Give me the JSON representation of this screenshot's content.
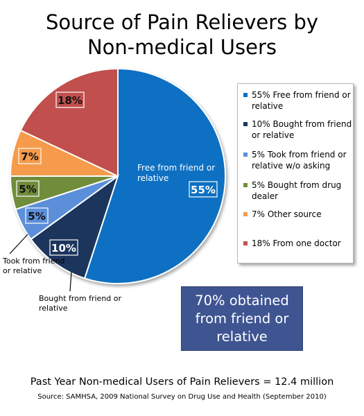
{
  "title_line1": "Source of Pain Relievers by",
  "title_line2": "Non-medical Users",
  "chart_data": {
    "type": "pie",
    "title": "Source of Pain Relievers by Non-medical Users",
    "slices": [
      {
        "label": "Free from friend or relative",
        "value": 55,
        "value_label": "55%",
        "color": "#0a6fc2",
        "inner_text": "Free from friend or relative"
      },
      {
        "label": "Bought from friend or relative",
        "value": 10,
        "value_label": "10%",
        "color": "#1b365d"
      },
      {
        "label": "Took from friend or relative w/o asking",
        "value": 5,
        "value_label": "5%",
        "color": "#5b8fd9"
      },
      {
        "label": "Bought from drug dealer",
        "value": 5,
        "value_label": "5%",
        "color": "#6f8d3a"
      },
      {
        "label": "Other source",
        "value": 7,
        "value_label": "7%",
        "color": "#f69b4b"
      },
      {
        "label": "From one doctor",
        "value": 18,
        "value_label": "18%",
        "color": "#c0504d"
      }
    ],
    "legend": [
      "55%  Free from friend or relative",
      "10%  Bought from friend or relative",
      "5%  Took from friend or relative w/o asking",
      "5%  Bought from drug dealer",
      "7%  Other source",
      "18%  From one doctor"
    ],
    "legend_position": "right",
    "annotations": [
      "Took from friend or relative",
      "Bought from friend or relative"
    ]
  },
  "callout": "70% obtained from friend or relative",
  "footer": "Past Year Non-medical Users of Pain Relievers = 12.4 million",
  "source": "Source: SAMHSA, 2009 National Survey on Drug Use and Health (September 2010)"
}
